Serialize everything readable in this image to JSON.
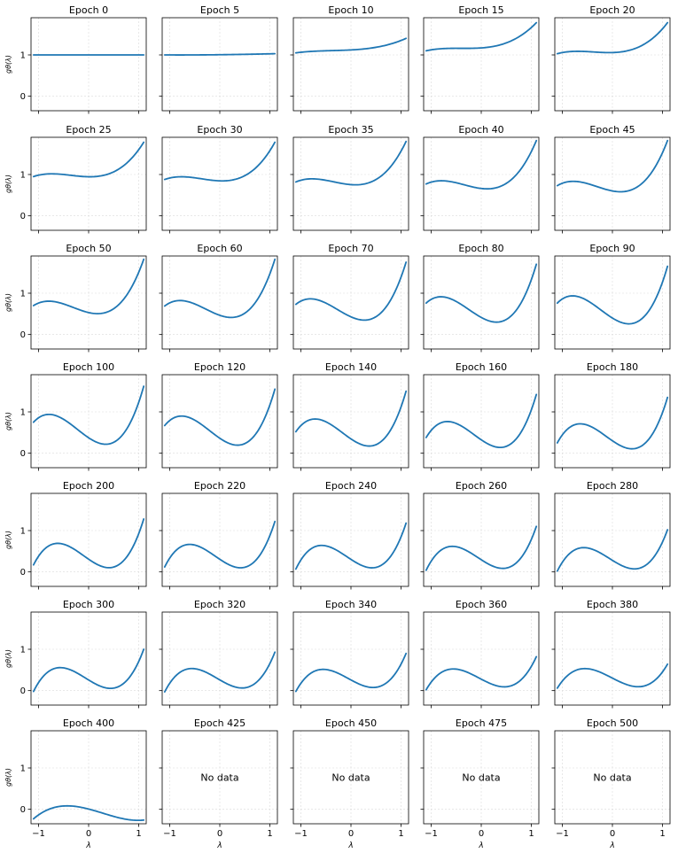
{
  "chart_data": {
    "type": "line",
    "layout": "small-multiples",
    "rows": 7,
    "cols": 5,
    "shared_xlim": [
      -1.15,
      1.15
    ],
    "shared_ylim": [
      -0.35,
      1.9
    ],
    "xticks": [
      -1,
      0,
      1
    ],
    "yticks": [
      0,
      1
    ],
    "xlabel": "λ",
    "ylabel": "gθ(λ)",
    "grid": true,
    "line_color": "#1f77b4",
    "no_data_text": "No data",
    "x": [
      -1.1,
      -0.5,
      0.3,
      1.1
    ],
    "panels": [
      {
        "title": "Epoch 0",
        "y": [
          1.0,
          1.0,
          1.0,
          1.0
        ]
      },
      {
        "title": "Epoch 5",
        "y": [
          1.0,
          1.0,
          1.01,
          1.03
        ]
      },
      {
        "title": "Epoch 10",
        "y": [
          1.05,
          1.1,
          1.15,
          1.4
        ]
      },
      {
        "title": "Epoch 15",
        "y": [
          1.1,
          1.16,
          1.22,
          1.78
        ]
      },
      {
        "title": "Epoch 20",
        "y": [
          1.03,
          1.08,
          1.1,
          1.78
        ]
      },
      {
        "title": "Epoch 25",
        "y": [
          0.95,
          1.0,
          0.98,
          1.78
        ]
      },
      {
        "title": "Epoch 30",
        "y": [
          0.88,
          0.92,
          0.88,
          1.78
        ]
      },
      {
        "title": "Epoch 35",
        "y": [
          0.82,
          0.86,
          0.78,
          1.8
        ]
      },
      {
        "title": "Epoch 40",
        "y": [
          0.77,
          0.8,
          0.68,
          1.82
        ]
      },
      {
        "title": "Epoch 45",
        "y": [
          0.73,
          0.78,
          0.6,
          1.82
        ]
      },
      {
        "title": "Epoch 50",
        "y": [
          0.7,
          0.74,
          0.52,
          1.82
        ]
      },
      {
        "title": "Epoch 60",
        "y": [
          0.69,
          0.74,
          0.42,
          1.82
        ]
      },
      {
        "title": "Epoch 70",
        "y": [
          0.73,
          0.76,
          0.35,
          1.75
        ]
      },
      {
        "title": "Epoch 80",
        "y": [
          0.76,
          0.8,
          0.3,
          1.7
        ]
      },
      {
        "title": "Epoch 90",
        "y": [
          0.76,
          0.82,
          0.26,
          1.65
        ]
      },
      {
        "title": "Epoch 100",
        "y": [
          0.75,
          0.82,
          0.22,
          1.62
        ]
      },
      {
        "title": "Epoch 120",
        "y": [
          0.67,
          0.8,
          0.2,
          1.55
        ]
      },
      {
        "title": "Epoch 140",
        "y": [
          0.52,
          0.76,
          0.18,
          1.5
        ]
      },
      {
        "title": "Epoch 160",
        "y": [
          0.38,
          0.72,
          0.15,
          1.42
        ]
      },
      {
        "title": "Epoch 180",
        "y": [
          0.25,
          0.68,
          0.12,
          1.35
        ]
      },
      {
        "title": "Epoch 200",
        "y": [
          0.17,
          0.67,
          0.12,
          1.28
        ]
      },
      {
        "title": "Epoch 220",
        "y": [
          0.12,
          0.65,
          0.12,
          1.22
        ]
      },
      {
        "title": "Epoch 240",
        "y": [
          0.07,
          0.63,
          0.12,
          1.18
        ]
      },
      {
        "title": "Epoch 260",
        "y": [
          0.04,
          0.61,
          0.11,
          1.1
        ]
      },
      {
        "title": "Epoch 280",
        "y": [
          0.02,
          0.58,
          0.1,
          1.02
        ]
      },
      {
        "title": "Epoch 300",
        "y": [
          -0.02,
          0.55,
          0.08,
          1.0
        ]
      },
      {
        "title": "Epoch 320",
        "y": [
          -0.03,
          0.53,
          0.09,
          0.93
        ]
      },
      {
        "title": "Epoch 340",
        "y": [
          -0.02,
          0.51,
          0.1,
          0.9
        ]
      },
      {
        "title": "Epoch 360",
        "y": [
          0.02,
          0.52,
          0.12,
          0.82
        ]
      },
      {
        "title": "Epoch 380",
        "y": [
          0.06,
          0.53,
          0.14,
          0.64
        ]
      },
      {
        "title": "Epoch 400",
        "y": [
          -0.23,
          0.08,
          -0.1,
          -0.26
        ]
      },
      {
        "title": "Epoch 425",
        "y": null
      },
      {
        "title": "Epoch 450",
        "y": null
      },
      {
        "title": "Epoch 475",
        "y": null
      },
      {
        "title": "Epoch 500",
        "y": null
      }
    ]
  }
}
